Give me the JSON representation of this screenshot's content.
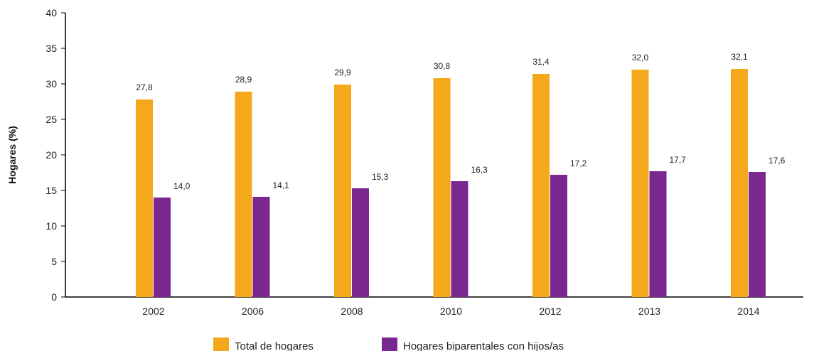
{
  "chart_data": {
    "type": "bar",
    "title": "",
    "xlabel": "",
    "ylabel": "Hogares (%)",
    "categories": [
      "2002",
      "2006",
      "2008",
      "2010",
      "2012",
      "2013",
      "2014"
    ],
    "ylim": [
      0,
      40
    ],
    "yticks": [
      0,
      5,
      10,
      15,
      20,
      25,
      30,
      35,
      40
    ],
    "grid": false,
    "legend_position": "bottom",
    "series": [
      {
        "name": "Total de hogares",
        "color": "#F5A81C",
        "values": [
          27.8,
          28.9,
          29.9,
          30.8,
          31.4,
          32.0,
          32.1
        ],
        "labels": [
          "27,8",
          "28,9",
          "29,9",
          "30,8",
          "31,4",
          "32,0",
          "32,1"
        ]
      },
      {
        "name": "Hogares biparentales con hijos/as",
        "color": "#7A2890",
        "values": [
          14.0,
          14.1,
          15.3,
          16.3,
          17.2,
          17.7,
          17.6
        ],
        "labels": [
          "14,0",
          "14,1",
          "15,3",
          "16,3",
          "17,2",
          "17,7",
          "17,6"
        ]
      }
    ]
  }
}
